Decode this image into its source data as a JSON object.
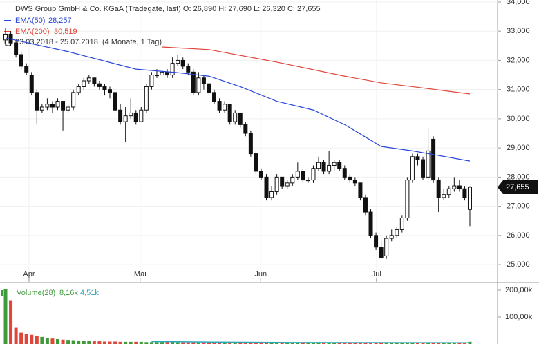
{
  "chart_data": {
    "type": "candlestick",
    "title": "DWS Group GmbH & Co. KGaA (Tradegate, last)  O: 26,890  H: 27,690  L: 26,320  C: 27,655",
    "period": "23.03.2018 - 25.07.2018",
    "period_note": "(4 Monate, 1 Tag)",
    "last_label": "27,655",
    "grid": true,
    "xlim": [
      -1.06,
      94.3
    ],
    "xticks": [
      {
        "value": 4.5,
        "label": "Apr"
      },
      {
        "value": 25.8,
        "label": "Mai"
      },
      {
        "value": 48.9,
        "label": "Jun"
      },
      {
        "value": 71.1,
        "label": "Jul"
      }
    ],
    "ylim": [
      24.41,
      34.07
    ],
    "yticks": [
      {
        "value": 25,
        "label": "25,000"
      },
      {
        "value": 26,
        "label": "26,000"
      },
      {
        "value": 27,
        "label": "27,000"
      },
      {
        "value": 28,
        "label": "28,000"
      },
      {
        "value": 29,
        "label": "29,000"
      },
      {
        "value": 30,
        "label": "30,000"
      },
      {
        "value": 31,
        "label": "31,000"
      },
      {
        "value": 32,
        "label": "32,000"
      },
      {
        "value": 33,
        "label": "33,000"
      },
      {
        "value": 34,
        "label": "34,000"
      }
    ],
    "candles": [
      [
        32.7,
        33.1,
        32.5,
        32.9
      ],
      [
        32.9,
        33.0,
        32.5,
        32.6
      ],
      [
        32.6,
        32.7,
        32.1,
        32.2
      ],
      [
        32.2,
        32.3,
        31.7,
        31.8
      ],
      [
        31.8,
        31.9,
        31.5,
        31.6
      ],
      [
        31.5,
        31.6,
        30.8,
        30.9
      ],
      [
        30.9,
        31.0,
        29.8,
        30.3
      ],
      [
        30.3,
        30.5,
        30.2,
        30.4
      ],
      [
        30.4,
        30.7,
        30.3,
        30.5
      ],
      [
        30.5,
        30.6,
        30.2,
        30.4
      ],
      [
        30.4,
        30.7,
        30.3,
        30.6
      ],
      [
        30.6,
        30.6,
        29.6,
        30.3
      ],
      [
        30.3,
        30.5,
        30.2,
        30.4
      ],
      [
        30.4,
        31.0,
        30.3,
        30.9
      ],
      [
        30.9,
        31.2,
        30.8,
        31.1
      ],
      [
        31.1,
        31.4,
        31.0,
        31.3
      ],
      [
        31.3,
        31.5,
        31.2,
        31.4
      ],
      [
        31.4,
        31.4,
        31.1,
        31.2
      ],
      [
        31.2,
        31.3,
        31.0,
        31.1
      ],
      [
        31.1,
        31.2,
        30.8,
        31.0
      ],
      [
        31.0,
        31.1,
        30.7,
        30.9
      ],
      [
        30.9,
        30.9,
        30.2,
        30.3
      ],
      [
        30.3,
        30.5,
        29.8,
        29.9
      ],
      [
        29.9,
        30.4,
        29.2,
        30.1
      ],
      [
        30.1,
        30.7,
        30.0,
        30.2
      ],
      [
        30.2,
        30.3,
        29.8,
        29.9
      ],
      [
        29.9,
        30.4,
        29.9,
        30.3
      ],
      [
        30.3,
        31.2,
        30.2,
        31.1
      ],
      [
        31.1,
        31.6,
        31.0,
        31.5
      ],
      [
        31.5,
        31.7,
        31.4,
        31.5
      ],
      [
        31.5,
        31.8,
        31.4,
        31.6
      ],
      [
        31.6,
        31.7,
        31.4,
        31.5
      ],
      [
        31.5,
        32.1,
        31.4,
        31.9
      ],
      [
        31.9,
        32.2,
        31.8,
        32.0
      ],
      [
        32.0,
        32.1,
        31.7,
        31.8
      ],
      [
        31.8,
        31.9,
        31.5,
        31.6
      ],
      [
        31.6,
        31.7,
        30.8,
        30.9
      ],
      [
        30.9,
        31.6,
        30.8,
        31.4
      ],
      [
        31.4,
        31.5,
        31.0,
        31.2
      ],
      [
        31.2,
        31.3,
        30.8,
        30.9
      ],
      [
        30.9,
        31.0,
        30.5,
        30.6
      ],
      [
        30.6,
        30.7,
        30.2,
        30.3
      ],
      [
        30.3,
        30.6,
        30.2,
        30.5
      ],
      [
        30.5,
        30.5,
        29.8,
        29.9
      ],
      [
        29.9,
        30.3,
        29.8,
        30.2
      ],
      [
        30.2,
        30.2,
        29.7,
        29.8
      ],
      [
        29.8,
        29.9,
        29.4,
        29.5
      ],
      [
        29.5,
        29.6,
        28.7,
        28.8
      ],
      [
        28.8,
        28.9,
        28.1,
        28.2
      ],
      [
        28.2,
        28.3,
        27.9,
        28.0
      ],
      [
        28.0,
        28.1,
        27.2,
        27.3
      ],
      [
        27.3,
        27.7,
        27.2,
        27.5
      ],
      [
        27.5,
        28.1,
        27.4,
        28.0
      ],
      [
        28.0,
        28.0,
        27.6,
        27.7
      ],
      [
        27.7,
        27.9,
        27.6,
        27.8
      ],
      [
        27.8,
        28.1,
        27.7,
        28.0
      ],
      [
        28.0,
        28.5,
        27.9,
        28.2
      ],
      [
        28.2,
        28.3,
        27.8,
        27.9
      ],
      [
        27.9,
        28.0,
        27.8,
        27.9
      ],
      [
        27.9,
        28.4,
        27.8,
        28.3
      ],
      [
        28.3,
        28.7,
        28.2,
        28.5
      ],
      [
        28.5,
        28.6,
        28.1,
        28.2
      ],
      [
        28.2,
        28.9,
        28.1,
        28.4
      ],
      [
        28.4,
        28.6,
        28.2,
        28.5
      ],
      [
        28.5,
        28.6,
        28.2,
        28.3
      ],
      [
        28.3,
        28.4,
        27.9,
        28.0
      ],
      [
        28.0,
        28.1,
        27.8,
        27.9
      ],
      [
        27.9,
        28.0,
        27.7,
        27.8
      ],
      [
        27.8,
        27.8,
        27.2,
        27.3
      ],
      [
        27.3,
        27.4,
        26.7,
        26.8
      ],
      [
        26.8,
        26.9,
        25.9,
        26.0
      ],
      [
        26.0,
        26.1,
        25.5,
        25.6
      ],
      [
        25.6,
        25.8,
        25.2,
        25.25
      ],
      [
        25.3,
        26.0,
        25.2,
        25.9
      ],
      [
        25.9,
        26.2,
        25.8,
        26.0
      ],
      [
        26.0,
        26.3,
        25.9,
        26.2
      ],
      [
        26.2,
        26.7,
        26.1,
        26.6
      ],
      [
        26.6,
        28.0,
        26.5,
        27.9
      ],
      [
        27.9,
        28.8,
        27.8,
        28.7
      ],
      [
        28.7,
        28.8,
        28.4,
        28.6
      ],
      [
        28.6,
        28.7,
        27.9,
        28.0
      ],
      [
        28.0,
        29.7,
        27.9,
        28.9
      ],
      [
        29.3,
        29.4,
        27.8,
        27.9
      ],
      [
        27.9,
        28.0,
        26.8,
        27.3
      ],
      [
        27.3,
        27.6,
        27.2,
        27.4
      ],
      [
        27.4,
        27.7,
        27.3,
        27.6
      ],
      [
        27.6,
        28.0,
        27.5,
        27.7
      ],
      [
        27.7,
        27.9,
        27.5,
        27.6
      ],
      [
        27.6,
        27.7,
        27.2,
        27.3
      ],
      [
        26.89,
        27.69,
        26.32,
        27.655
      ]
    ],
    "series": [
      {
        "name": "EMA(50)",
        "value_label": "28,257",
        "color": "#2846d8",
        "x": [
          0,
          12,
          25,
          33,
          39,
          45,
          52,
          59,
          65,
          72,
          78,
          89
        ],
        "values": [
          32.77,
          32.3,
          31.7,
          31.58,
          31.46,
          31.1,
          30.6,
          30.3,
          29.8,
          29.05,
          28.9,
          28.55
        ]
      },
      {
        "name": "EMA(200)",
        "value_label": "30,519",
        "color": "#e0453a",
        "x": [
          30,
          39,
          52,
          65,
          72,
          78,
          89
        ],
        "values": [
          32.46,
          32.37,
          31.94,
          31.46,
          31.23,
          31.1,
          30.85
        ]
      }
    ],
    "volume": {
      "name": "Volume(28)",
      "value_label": "8,16k",
      "ma_label": "4,51k",
      "up_color": "#3f9a3a",
      "down_color": "#e0453a",
      "ma_color": "#2aa7b8",
      "ylim": [
        0,
        228000
      ],
      "yticks": [
        {
          "value": 100000,
          "label": "100,00k"
        },
        {
          "value": 200000,
          "label": "200,00k"
        }
      ],
      "values": [
        205000,
        160000,
        60000,
        42000,
        38000,
        34000,
        30000,
        26000,
        22000,
        20000,
        18000,
        16000,
        15000,
        14000,
        13000,
        12000,
        11000,
        10000,
        10000,
        9000,
        9000,
        9000,
        8000,
        8000,
        8000,
        8000,
        8000,
        7000,
        7000,
        7000,
        7000,
        7000,
        7000,
        6000,
        6000,
        6000,
        6000,
        6000,
        6000,
        6000,
        6000,
        6000,
        5000,
        5000,
        5000,
        5000,
        5000,
        5000,
        5000,
        5000,
        5000,
        5000,
        5000,
        5000,
        5000,
        5000,
        5000,
        5000,
        5000,
        5000,
        5000,
        5000,
        5000,
        5000,
        5000,
        5000,
        5000,
        5000,
        5000,
        5000,
        5000,
        5000,
        5000,
        5000,
        5000,
        5000,
        5000,
        5000,
        5000,
        5000,
        5000,
        5000,
        5000,
        5000,
        5000,
        5000,
        5000,
        5000,
        5000,
        8160
      ],
      "ma_x": [
        28,
        40,
        55,
        70,
        89
      ],
      "ma_values": [
        9000,
        7000,
        5500,
        5000,
        4510
      ]
    }
  }
}
